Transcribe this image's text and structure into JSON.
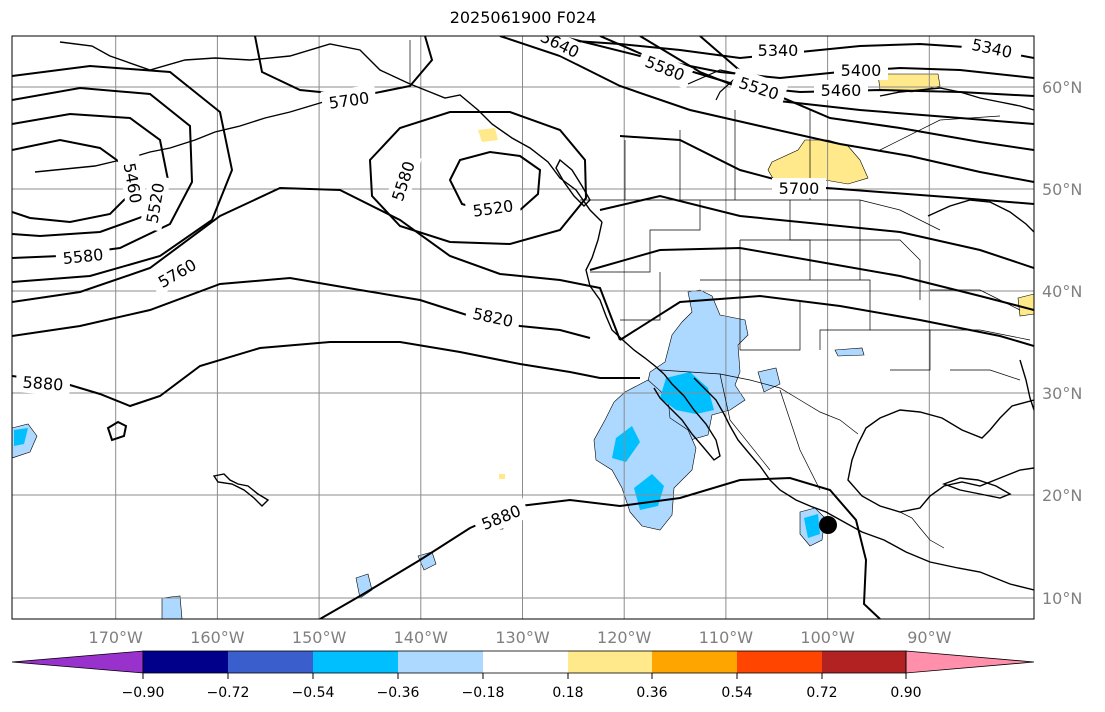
{
  "title": "2025061900 F024",
  "colors": {
    "neg_fill_light": "#add8ff",
    "neg_fill_mid": "#00bfff",
    "pos_fill_light": "#ffe98a",
    "marker": "#000000"
  },
  "lat_labels": [
    "60°N",
    "50°N",
    "40°N",
    "30°N",
    "20°N",
    "10°N"
  ],
  "lon_labels": [
    "170°W",
    "160°W",
    "150°W",
    "140°W",
    "130°W",
    "120°W",
    "110°W",
    "100°W",
    "90°W"
  ],
  "contour_labels": [
    "5340",
    "5340",
    "5400",
    "5460",
    "5520",
    "5580",
    "5640",
    "5700",
    "5520",
    "5580",
    "5460",
    "5520",
    "5580",
    "5760",
    "5820",
    "5880",
    "5700",
    "5880"
  ],
  "colorbar": {
    "colors": [
      "#9932cc",
      "#00008b",
      "#3a5fcd",
      "#00bfff",
      "#add8ff",
      "#ffffff",
      "#ffe98a",
      "#ffa500",
      "#ff4500",
      "#b22222",
      "#ff8fab"
    ],
    "ticks": [
      "−0.90",
      "−0.72",
      "−0.54",
      "−0.36",
      "−0.18",
      "0.18",
      "0.36",
      "0.54",
      "0.72",
      "0.90"
    ]
  }
}
